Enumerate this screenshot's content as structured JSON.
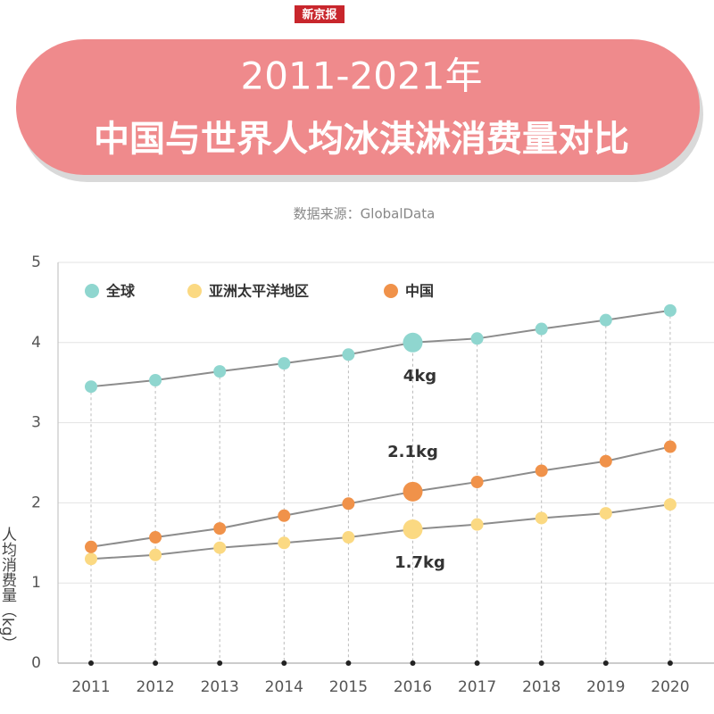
{
  "header": {
    "logo": "新京报"
  },
  "chart_data": {
    "type": "line",
    "title": "2011-2021年",
    "subtitle": "中国与世界人均冰淇淋消费量对比",
    "source": "数据来源：GlobalData",
    "y_label": "人均消费量（kg）",
    "categories": [
      "2011",
      "2012",
      "2013",
      "2014",
      "2015",
      "2016",
      "2017",
      "2018",
      "2019",
      "2020"
    ],
    "series": [
      {
        "name": "全球",
        "color": "#8fd6cf",
        "values": [
          3.45,
          3.53,
          3.64,
          3.74,
          3.85,
          4.0,
          4.05,
          4.17,
          4.28,
          4.4
        ],
        "value_labels": [
          null,
          null,
          null,
          null,
          null,
          "4kg",
          null,
          null,
          null,
          null
        ]
      },
      {
        "name": "亚洲太平洋地区",
        "color": "#fbd982",
        "values": [
          1.3,
          1.35,
          1.44,
          1.5,
          1.57,
          1.67,
          1.73,
          1.81,
          1.87,
          1.98
        ],
        "value_labels": [
          null,
          null,
          null,
          null,
          null,
          "1.7kg",
          null,
          null,
          null,
          null
        ]
      },
      {
        "name": "中国",
        "color": "#f0924a",
        "values": [
          1.45,
          1.57,
          1.68,
          1.84,
          1.99,
          2.14,
          2.26,
          2.4,
          2.52,
          2.7
        ],
        "value_labels": [
          null,
          null,
          null,
          null,
          null,
          "2.1kg",
          null,
          null,
          null,
          null
        ]
      }
    ],
    "ylim": [
      0,
      5
    ],
    "yticks": [
      0,
      1,
      2,
      3,
      4,
      5
    ],
    "grid": true,
    "legend": "top-left"
  }
}
